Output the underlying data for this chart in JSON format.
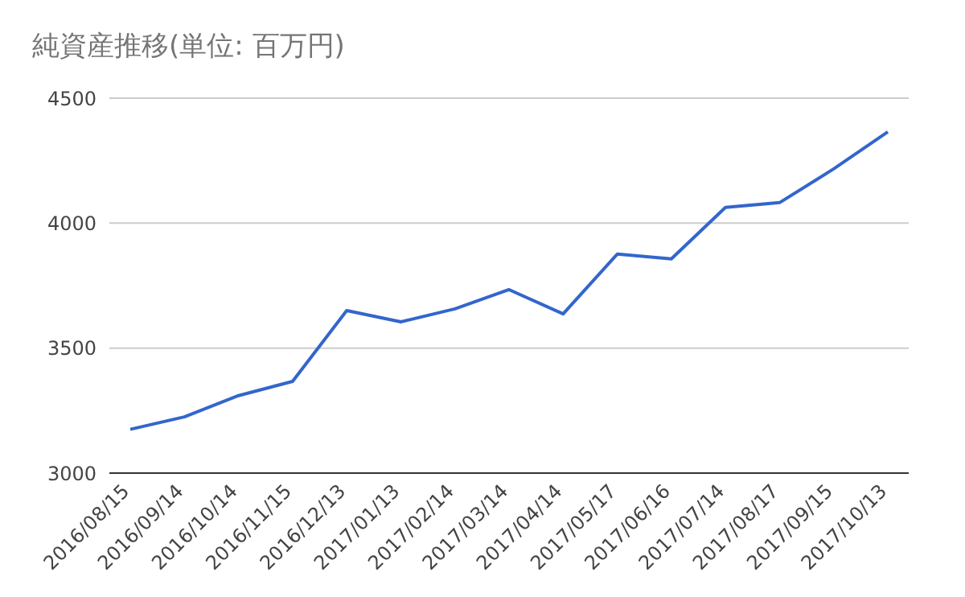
{
  "chart_data": {
    "type": "line",
    "title": "純資産推移(単位: 百万円)",
    "categories": [
      "2016/08/15",
      "2016/09/14",
      "2016/10/14",
      "2016/11/15",
      "2016/12/13",
      "2017/01/13",
      "2017/02/14",
      "2017/03/14",
      "2017/04/14",
      "2017/05/17",
      "2017/06/16",
      "2017/07/14",
      "2017/08/17",
      "2017/09/15",
      "2017/10/13"
    ],
    "series": [
      {
        "color": "#3366cc",
        "values": [
          3175,
          3225,
          3310,
          3367,
          3650,
          3605,
          3657,
          3734,
          3637,
          3876,
          3857,
          4063,
          4082,
          4217,
          4365
        ]
      }
    ],
    "ylim": [
      3000,
      4500
    ],
    "yticks": [
      3000,
      3500,
      4000,
      4500
    ],
    "grid": "y",
    "marker": "none",
    "line_style": "solid"
  }
}
